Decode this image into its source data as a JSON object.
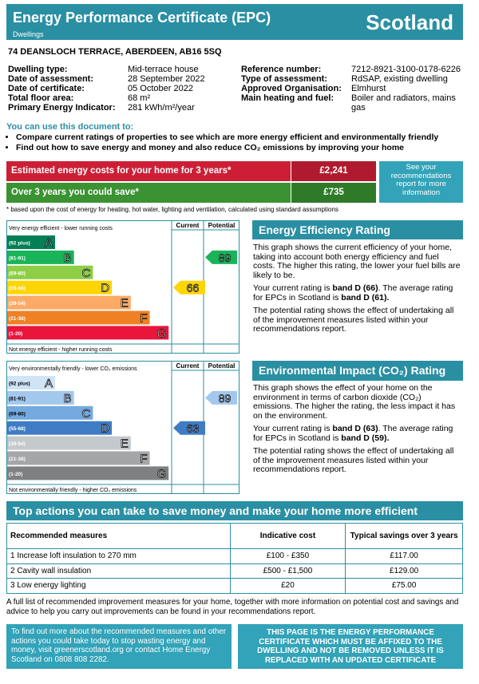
{
  "header": {
    "title": "Energy Performance Certificate (EPC)",
    "subtitle": "Dwellings",
    "region": "Scotland"
  },
  "address": "74 DEANSLOCH TERRACE, ABERDEEN, AB16 5SQ",
  "details_left": [
    [
      "Dwelling type:",
      "Mid-terrace house"
    ],
    [
      "Date of assessment:",
      "28 September 2022"
    ],
    [
      "Date of certificate:",
      "05 October 2022"
    ],
    [
      "Total floor area:",
      "68 m²"
    ],
    [
      "Primary Energy Indicator:",
      "281 kWh/m²/year"
    ]
  ],
  "details_right": [
    [
      "Reference number:",
      "7212-8921-3100-0178-6226"
    ],
    [
      "Type of assessment:",
      "RdSAP, existing dwelling"
    ],
    [
      "Approved Organisation:",
      "Elmhurst"
    ],
    [
      "Main heating and fuel:",
      "Boiler and radiators, mains gas"
    ]
  ],
  "use": {
    "heading": "You can use this document to:",
    "items": [
      "Compare current ratings of properties to see which are more energy efficient and environmentally friendly",
      "Find out how to save energy and money and also reduce CO₂ emissions by improving your home"
    ]
  },
  "costs": {
    "rows": [
      [
        "Estimated energy costs for your home for 3 years*",
        "£2,241"
      ],
      [
        "Over 3 years you could save*",
        "£735"
      ]
    ],
    "side_note": "See your recommendations report for more information",
    "footnote": "* based upon the cost of energy for heating, hot water, lighting and ventilation, calculated using standard assumptions"
  },
  "energy_chart": {
    "top": "Very energy efficient - lower running costs",
    "bottom": "Not energy efficient - higher running costs",
    "col_current": "Current",
    "col_potential": "Potential",
    "colors": [
      "#008054",
      "#19b459",
      "#8dce46",
      "#ffd500",
      "#fcaa65",
      "#ef8023",
      "#e9153b"
    ],
    "bands": [
      {
        "range": "(92 plus)",
        "letter": "A"
      },
      {
        "range": "(81-91)",
        "letter": "B"
      },
      {
        "range": "(69-80)",
        "letter": "C"
      },
      {
        "range": "(55-68)",
        "letter": "D"
      },
      {
        "range": "(39-54)",
        "letter": "E"
      },
      {
        "range": "(21-38)",
        "letter": "F"
      },
      {
        "range": "(1-20)",
        "letter": "G"
      }
    ],
    "current": 66,
    "potential": 89
  },
  "energy_text": {
    "heading": "Energy Efficiency Rating",
    "paragraphs": [
      [
        "This graph shows the current efficiency of your home, taking into account both energy efficiency and fuel costs. The higher this rating, the lower your fuel bills are likely to be."
      ],
      [
        "Your current rating is ",
        {
          "text": "band D (66)",
          "bold": true
        },
        ". The average rating for EPCs in Scotland is ",
        {
          "text": "band D (61).",
          "bold": true
        }
      ],
      [
        "The potential rating shows the effect of undertaking all of the improvement measures listed within your recommendations report."
      ]
    ]
  },
  "env_chart": {
    "top": "Very environmentally friendly - lower CO₂ emissions",
    "bottom": "Not environmentally friendly - higher CO₂ emissions",
    "col_current": "Current",
    "col_potential": "Potential",
    "colors": [
      "#cfe4f7",
      "#a3c8ee",
      "#74a9df",
      "#3f7cc4",
      "#c4c9ce",
      "#a4a6a8",
      "#7f8081"
    ],
    "bands": [
      {
        "range": "(92 plus)",
        "letter": "A"
      },
      {
        "range": "(81-91)",
        "letter": "B"
      },
      {
        "range": "(69-80)",
        "letter": "C"
      },
      {
        "range": "(55-68)",
        "letter": "D"
      },
      {
        "range": "(39-54)",
        "letter": "E"
      },
      {
        "range": "(21-38)",
        "letter": "F"
      },
      {
        "range": "(1-20)",
        "letter": "G"
      }
    ],
    "current": 63,
    "potential": 89
  },
  "env_text": {
    "heading": "Environmental Impact (CO₂) Rating",
    "paragraphs": [
      [
        "This graph shows the effect of your home on the environment in terms of carbon dioxide (CO₂) emissions. The higher the rating, the less impact it has on the environment."
      ],
      [
        "Your current rating is ",
        {
          "text": "band D (63)",
          "bold": true
        },
        ". The average rating for EPCs in Scotland is ",
        {
          "text": "band D (59).",
          "bold": true
        }
      ],
      [
        "The potential rating shows the effect of undertaking all of the improvement measures listed within your recommendations report."
      ]
    ]
  },
  "actions": {
    "heading": "Top actions you can take to save money and make your home more efficient",
    "columns": [
      "Recommended measures",
      "Indicative cost",
      "Typical savings over 3 years"
    ],
    "rows": [
      [
        "1 Increase loft insulation to 270 mm",
        "£100 - £350",
        "£117.00"
      ],
      [
        "2 Cavity wall insulation",
        "£500 - £1,500",
        "£129.00"
      ],
      [
        "3 Low energy lighting",
        "£20",
        "£75.00"
      ]
    ],
    "note": "A full list of recommended improvement measures for your home, together with more information on potential cost and savings and advice to help you carry out improvements can be found in your recommendations report."
  },
  "footer": {
    "left": "To find out more about the recommended measures and other actions you could take today to stop wasting energy and money, visit greenerscotland.org or contact Home Energy Scotland on 0808 808 2282.",
    "right": "THIS PAGE IS THE ENERGY PERFORMANCE CERTIFICATE WHICH MUST BE AFFIXED TO THE DWELLING AND NOT BE REMOVED UNLESS IT IS REPLACED WITH AN UPDATED CERTIFICATE"
  }
}
